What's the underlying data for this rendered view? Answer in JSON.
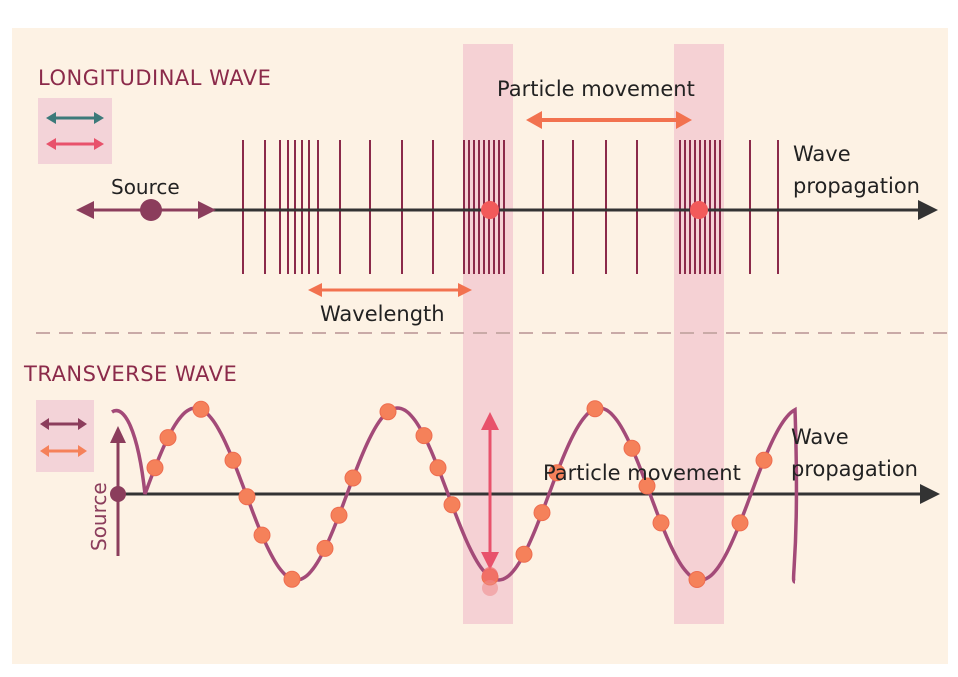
{
  "longitudinal": {
    "title": "LONGITUDINAL WAVE",
    "source_label": "Source",
    "particle_movement_label": "Particle movement",
    "wavelength_label": "Wavelength",
    "wave_propagation_label": [
      "Wave",
      "propagation"
    ]
  },
  "transverse": {
    "title": "TRANSVERSE WAVE",
    "source_label": "Source",
    "particle_movement_label": "Particle movement",
    "wave_propagation_label": [
      "Wave",
      "propagation"
    ]
  },
  "colors": {
    "background": "#fdf2e4",
    "title": "#8b2a4a",
    "axis": "#333333",
    "compression_line": "#8b2a4a",
    "highlight_band": "#f1c6cf",
    "particle": "#f5815a",
    "particle_stroke": "#ee6d4f",
    "wave_curve": "#a34a78",
    "source_marker": "#8b3d5c",
    "particle_arrow": "#f2724f",
    "vertical_arrow": "#e8526b",
    "legend_teal": "#3c7a7a",
    "legend_pink": "#e8526b",
    "legend_plum": "#8b3d5c",
    "legend_orange": "#f5815a",
    "divider": "#c9aaa7"
  }
}
